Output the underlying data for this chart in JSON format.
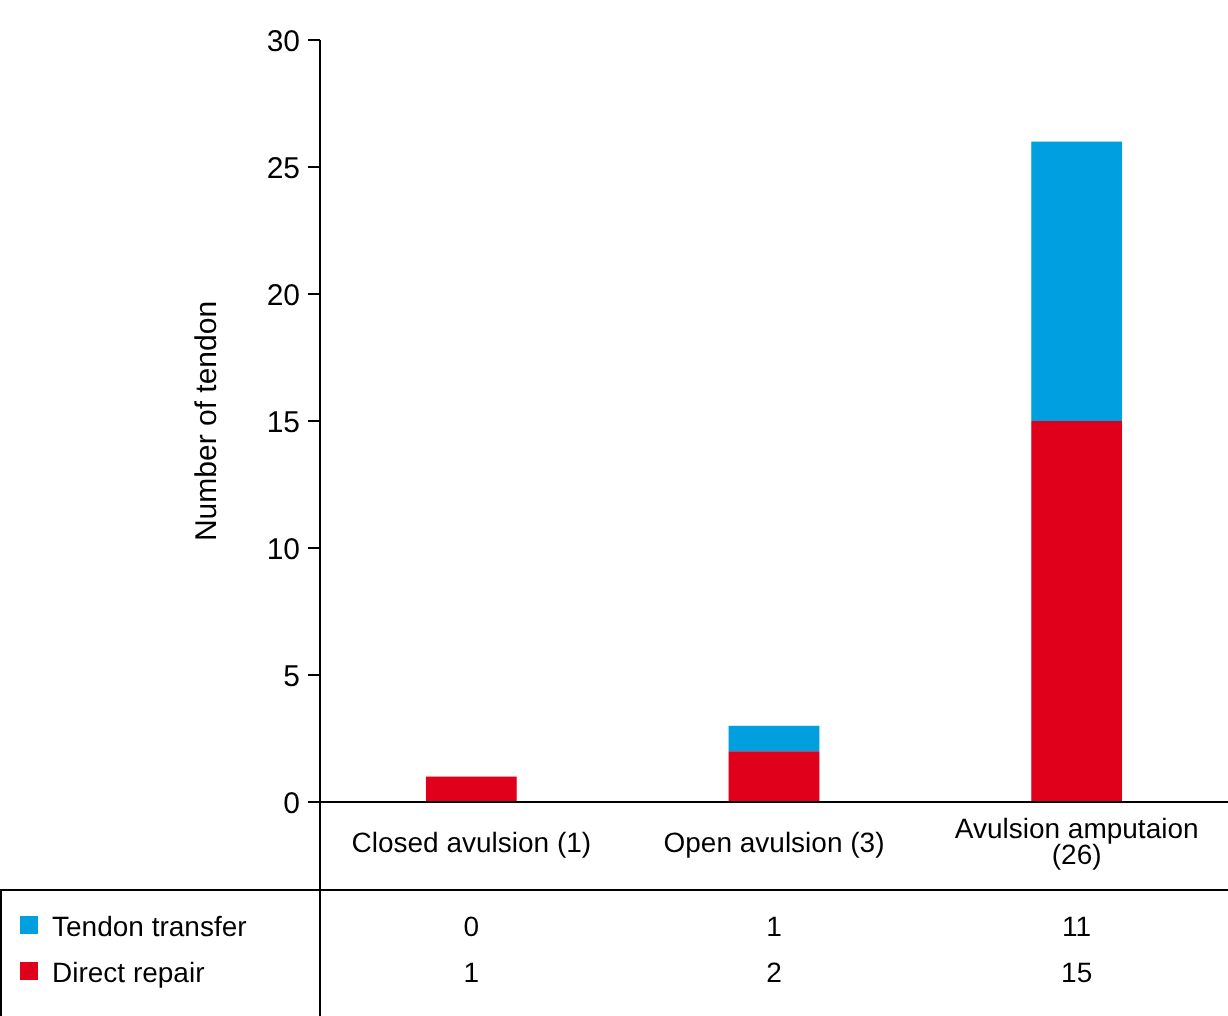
{
  "chart_data": {
    "type": "bar",
    "stacked": true,
    "ylabel": "Number of tendon",
    "categories": [
      "Closed avulsion (1)",
      "Open avulsion (3)",
      "Avulsion amputaion (26)"
    ],
    "series": [
      {
        "name": "Direct repair",
        "color": "#e0001b",
        "values": [
          1,
          2,
          15
        ]
      },
      {
        "name": "Tendon transfer",
        "color": "#00a0e0",
        "values": [
          0,
          1,
          11
        ]
      }
    ],
    "ylim": [
      0,
      30
    ],
    "yticks": [
      0,
      5,
      10,
      15,
      20,
      25,
      30
    ],
    "grid": false,
    "legend": "bottom left",
    "data_labels": true
  }
}
